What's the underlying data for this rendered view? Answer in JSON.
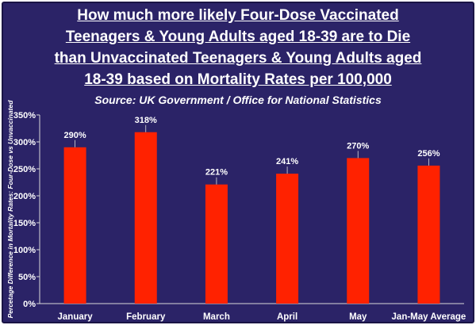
{
  "chart_data": {
    "type": "bar",
    "title_lines": [
      "How much more likely Four-Dose Vaccinated",
      "Teenagers & Young Adults aged 18-39 are to Die",
      "than Unvaccinated Teenagers & Young Adults aged",
      "18-39 based on Mortality Rates per 100,000"
    ],
    "subtitle": "Source: UK Government / Office for National Statistics",
    "ylabel": "Percetage Difference in Mortality Rates: Four-Dose vs Unvaccinated",
    "xlabel": "",
    "categories": [
      "January",
      "February",
      "March",
      "April",
      "May",
      "Jan-May Average"
    ],
    "values": [
      290,
      318,
      221,
      241,
      270,
      256
    ],
    "value_labels": [
      "290%",
      "318%",
      "221%",
      "241%",
      "270%",
      "256%"
    ],
    "ylim": [
      0,
      350
    ],
    "yticks": [
      0,
      50,
      100,
      150,
      200,
      250,
      300,
      350
    ],
    "ytick_labels": [
      "0%",
      "50%",
      "100%",
      "150%",
      "200%",
      "250%",
      "300%",
      "350%"
    ],
    "grid": false,
    "legend": "none",
    "colors": {
      "bar": "#ff2200",
      "background": "#2b2367",
      "text": "#ffffff"
    }
  }
}
